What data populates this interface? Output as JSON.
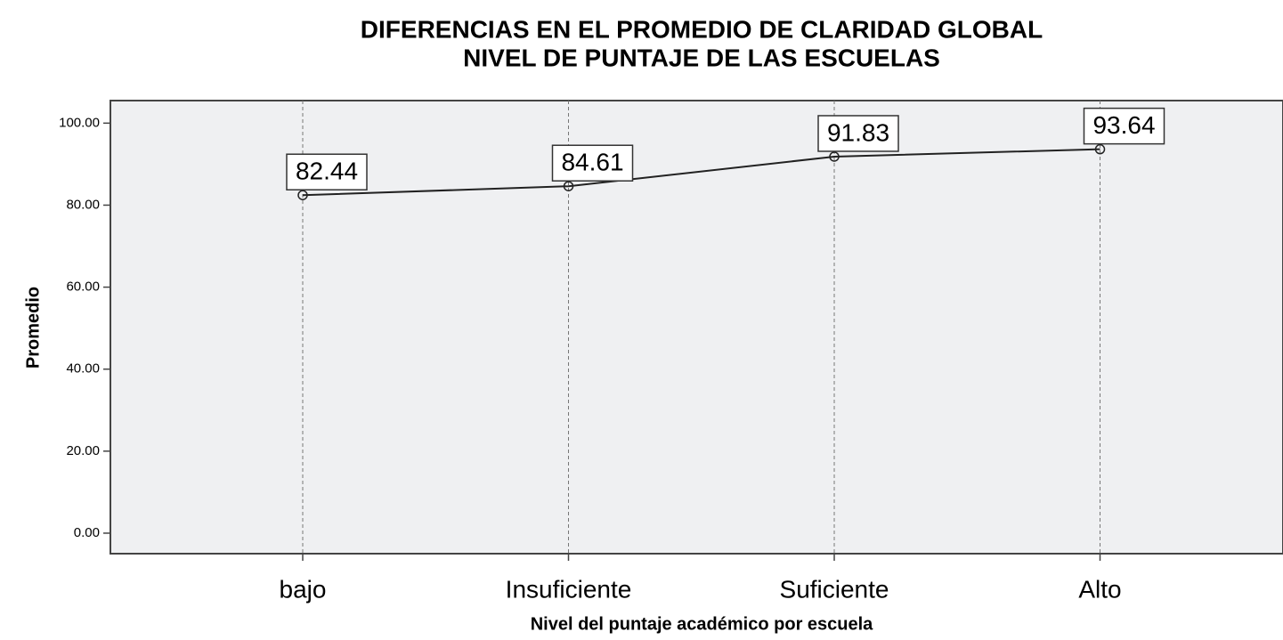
{
  "chart_data": {
    "type": "line",
    "title": [
      "DIFERENCIAS EN EL PROMEDIO DE CLARIDAD GLOBAL",
      "NIVEL DE PUNTAJE DE LAS ESCUELAS"
    ],
    "x_label": "Nivel del puntaje académico por escuela",
    "y_label": "Promedio",
    "categories": [
      "bajo",
      "Insuficiente",
      "Suficiente",
      "Alto"
    ],
    "values": [
      82.44,
      84.61,
      91.83,
      93.64
    ],
    "color": "#222222",
    "ylim": [
      -5,
      105.5
    ],
    "yticks": [
      {
        "value": 0,
        "label": "0.00"
      },
      {
        "value": 20,
        "label": "20.00"
      },
      {
        "value": 40,
        "label": "40.00"
      },
      {
        "value": 60,
        "label": "60.00"
      },
      {
        "value": 80,
        "label": "80.00"
      },
      {
        "value": 100,
        "label": "100.00"
      }
    ],
    "grid": true
  }
}
